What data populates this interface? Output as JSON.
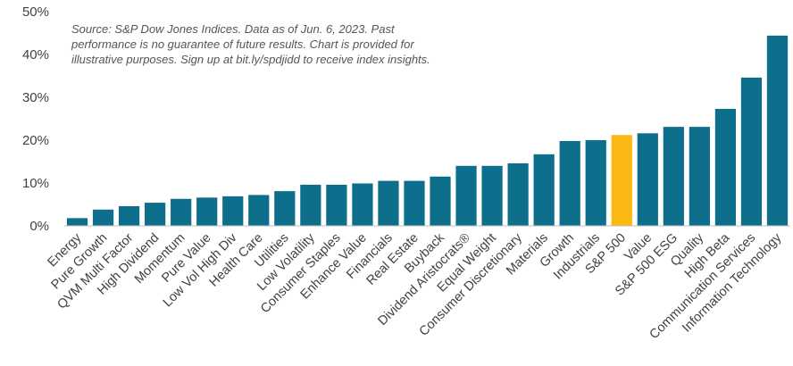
{
  "chart_data": {
    "type": "bar",
    "note_lines": [
      "Source: S&P Dow Jones Indices. Data as of Jun. 6, 2023. Past",
      "performance is no guarantee of future results. Chart is provided for",
      "illustrative purposes.  Sign up at bit.ly/spdjidd to receive index insights."
    ],
    "categories": [
      "Energy",
      "Pure Growth",
      "QVM Multi Factor",
      "High Dividend",
      "Momentum",
      "Pure Value",
      "Low Vol High Div",
      "Health Care",
      "Utilities",
      "Low Volatility",
      "Consumer Staples",
      "Enhance Value",
      "Financials",
      "Real Estate",
      "Buyback",
      "Dividend Aristocrats®",
      "Equal Weight",
      "Consumer Discretionary",
      "Materials",
      "Growth",
      "Industrials",
      "S&P 500",
      "Value",
      "S&P 500 ESG",
      "Quality",
      "High Beta",
      "Communication Services",
      "Information Technology"
    ],
    "values": [
      1.8,
      3.8,
      4.6,
      5.4,
      6.3,
      6.6,
      6.9,
      7.2,
      8.1,
      9.6,
      9.6,
      9.9,
      10.5,
      10.5,
      11.5,
      14.0,
      14.0,
      14.6,
      16.7,
      19.8,
      20.0,
      21.2,
      21.6,
      23.1,
      23.1,
      27.3,
      34.6,
      44.4
    ],
    "highlight": "S&P 500",
    "colors": {
      "bar": "#0E6F8C",
      "highlight": "#FDB913",
      "tick_text": "#404040",
      "note_text": "#555555"
    },
    "yticks": [
      "0%",
      "10%",
      "20%",
      "30%",
      "40%",
      "50%"
    ],
    "ylim": [
      0,
      50
    ],
    "grid": false,
    "legend": "none"
  }
}
